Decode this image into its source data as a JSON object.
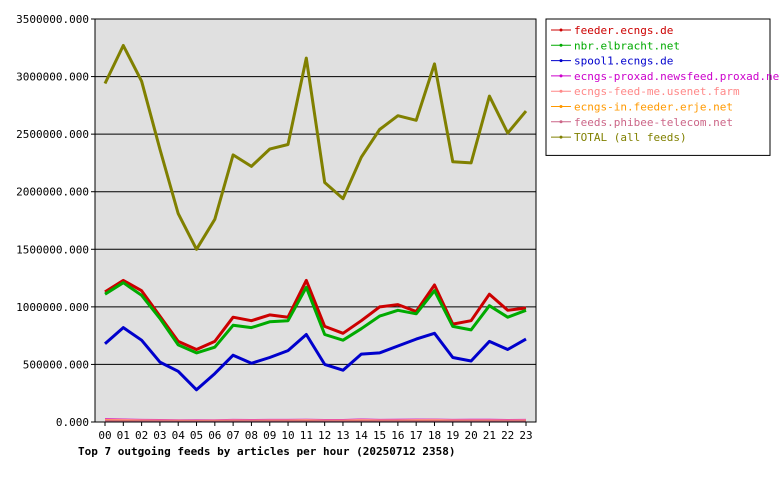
{
  "chart_data": {
    "type": "line",
    "title": "Top 7 outgoing feeds by articles per hour (20250712 2358)",
    "x": [
      "00",
      "01",
      "02",
      "03",
      "04",
      "05",
      "06",
      "07",
      "08",
      "09",
      "10",
      "11",
      "12",
      "13",
      "14",
      "15",
      "16",
      "17",
      "18",
      "19",
      "20",
      "21",
      "22",
      "23"
    ],
    "ylim": [
      0,
      3500000
    ],
    "yticks": [
      "0.000",
      "500000.000",
      "1000000.000",
      "1500000.000",
      "2000000.000",
      "2500000.000",
      "3000000.000",
      "3500000.000"
    ],
    "ytick_values": [
      0,
      500000,
      1000000,
      1500000,
      2000000,
      2500000,
      3000000,
      3500000
    ],
    "grid": true,
    "legend_position": "right",
    "series": [
      {
        "name": "feeder.ecngs.de",
        "color": "#cc0000",
        "values": [
          1130000,
          1230000,
          1140000,
          920000,
          700000,
          630000,
          700000,
          910000,
          880000,
          930000,
          910000,
          1230000,
          830000,
          770000,
          880000,
          1000000,
          1020000,
          960000,
          1190000,
          850000,
          880000,
          1110000,
          970000,
          990000
        ]
      },
      {
        "name": "nbr.elbracht.net",
        "color": "#00aa00",
        "values": [
          1110000,
          1210000,
          1100000,
          900000,
          670000,
          600000,
          650000,
          840000,
          820000,
          870000,
          880000,
          1170000,
          760000,
          710000,
          810000,
          920000,
          970000,
          940000,
          1140000,
          830000,
          800000,
          1010000,
          910000,
          970000
        ]
      },
      {
        "name": "spool1.ecngs.de",
        "color": "#0000cc",
        "values": [
          680000,
          820000,
          710000,
          520000,
          440000,
          280000,
          420000,
          580000,
          510000,
          560000,
          620000,
          760000,
          500000,
          450000,
          590000,
          600000,
          660000,
          720000,
          770000,
          560000,
          530000,
          700000,
          630000,
          720000
        ]
      },
      {
        "name": "ecngs-proxad.newsfeed.proxad.net",
        "color": "#cc00cc",
        "values": [
          25000,
          22000,
          18000,
          17000,
          16000,
          15000,
          16000,
          18000,
          17000,
          18000,
          18000,
          20000,
          17000,
          17000,
          22000,
          18000,
          19000,
          21000,
          21000,
          18000,
          20000,
          19000,
          17000,
          18000
        ]
      },
      {
        "name": "ecngs-feed-me.usenet.farm",
        "color": "#ff8888",
        "values": [
          20000,
          18000,
          15000,
          14000,
          13000,
          12000,
          13000,
          15000,
          14000,
          15000,
          15000,
          17000,
          14000,
          14000,
          18000,
          15000,
          16000,
          17000,
          18000,
          15000,
          16000,
          16000,
          14000,
          15000
        ]
      },
      {
        "name": "ecngs-in.feeder.erje.net",
        "color": "#ff9900",
        "values": [
          10000,
          9000,
          8000,
          7000,
          6000,
          6000,
          7000,
          8000,
          7000,
          8000,
          8000,
          9000,
          7000,
          7000,
          9000,
          8000,
          8000,
          9000,
          9000,
          8000,
          8000,
          8000,
          7000,
          8000
        ]
      },
      {
        "name": "feeds.phibee-telecom.net",
        "color": "#cc6688",
        "values": [
          8000,
          7000,
          6000,
          6000,
          5000,
          5000,
          5000,
          6000,
          6000,
          6000,
          6000,
          7000,
          6000,
          5000,
          7000,
          6000,
          6000,
          7000,
          7000,
          6000,
          6000,
          6000,
          6000,
          6000
        ]
      },
      {
        "name": "TOTAL (all feeds)",
        "color": "#808000",
        "values": [
          2940000,
          3270000,
          2960000,
          2370000,
          1810000,
          1500000,
          1760000,
          2320000,
          2220000,
          2370000,
          2410000,
          3160000,
          2080000,
          1940000,
          2300000,
          2540000,
          2660000,
          2620000,
          3110000,
          2260000,
          2250000,
          2830000,
          2510000,
          2700000
        ]
      }
    ]
  }
}
